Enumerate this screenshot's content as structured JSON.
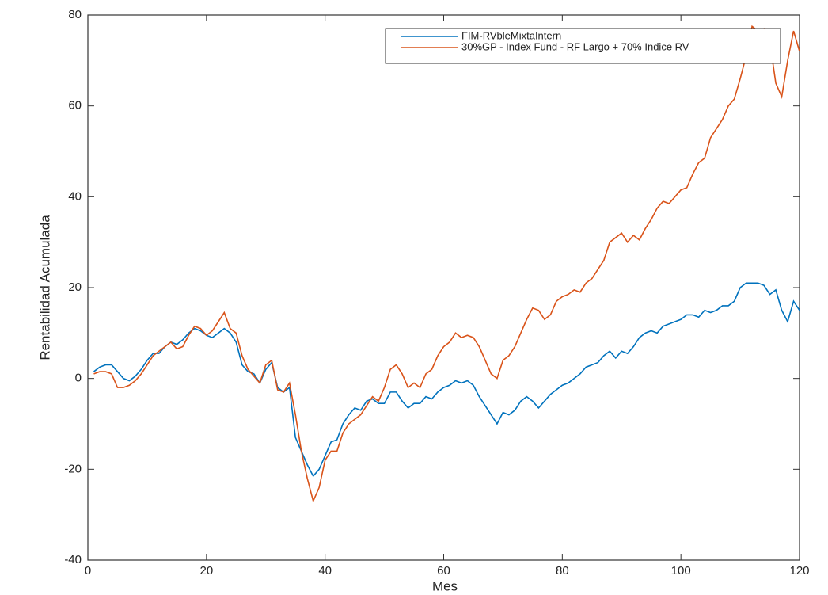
{
  "chart_data": {
    "type": "line",
    "xlabel": "Mes",
    "ylabel": "Rentabilidad Acumulada",
    "x": [
      1,
      2,
      3,
      4,
      5,
      6,
      7,
      8,
      9,
      10,
      11,
      12,
      13,
      14,
      15,
      16,
      17,
      18,
      19,
      20,
      21,
      22,
      23,
      24,
      25,
      26,
      27,
      28,
      29,
      30,
      31,
      32,
      33,
      34,
      35,
      36,
      37,
      38,
      39,
      40,
      41,
      42,
      43,
      44,
      45,
      46,
      47,
      48,
      49,
      50,
      51,
      52,
      53,
      54,
      55,
      56,
      57,
      58,
      59,
      60,
      61,
      62,
      63,
      64,
      65,
      66,
      67,
      68,
      69,
      70,
      71,
      72,
      73,
      74,
      75,
      76,
      77,
      78,
      79,
      80,
      81,
      82,
      83,
      84,
      85,
      86,
      87,
      88,
      89,
      90,
      91,
      92,
      93,
      94,
      95,
      96,
      97,
      98,
      99,
      100,
      101,
      102,
      103,
      104,
      105,
      106,
      107,
      108,
      109,
      110,
      111,
      112,
      113,
      114,
      115,
      116,
      117,
      118,
      119,
      120
    ],
    "series": [
      {
        "name": "FIM-RVbleMixtaIntern",
        "color": "#0072bd",
        "values": [
          1.5,
          2.5,
          3,
          3,
          1.5,
          0,
          -0.5,
          0.5,
          2,
          4,
          5.5,
          5.5,
          7,
          8,
          7.5,
          8.5,
          10,
          11,
          10.5,
          9.5,
          9,
          10,
          11,
          10,
          8,
          3,
          1.5,
          1,
          -1,
          2,
          3.5,
          -2,
          -3,
          -2,
          -13,
          -16,
          -19,
          -21.5,
          -20,
          -17,
          -14,
          -13.5,
          -10,
          -8,
          -6.5,
          -7,
          -5,
          -4.5,
          -5.5,
          -5.5,
          -3,
          -3,
          -5,
          -6.5,
          -5.5,
          -5.5,
          -4,
          -4.5,
          -3,
          -2,
          -1.5,
          -0.5,
          -1,
          -0.5,
          -1.5,
          -4,
          -6,
          -8,
          -10,
          -7.5,
          -8,
          -7,
          -5,
          -4,
          -5,
          -6.5,
          -5,
          -3.5,
          -2.5,
          -1.5,
          -1,
          0,
          1,
          2.5,
          3,
          3.5,
          5,
          6,
          4.5,
          6,
          5.5,
          7,
          9,
          10,
          10.5,
          10,
          11.5,
          12,
          12.5,
          13,
          14,
          14,
          13.5,
          15,
          14.5,
          15,
          16,
          16,
          17,
          20,
          21,
          21,
          21,
          20.5,
          18.5,
          19.5,
          15,
          12.5,
          17,
          15
        ]
      },
      {
        "name": "30%GP - Index Fund - RF Largo + 70% Indice RV",
        "color": "#d95319",
        "values": [
          1,
          1.5,
          1.5,
          1,
          -2,
          -2,
          -1.5,
          -0.5,
          1,
          3,
          5,
          6,
          7,
          8,
          6.5,
          7,
          9.5,
          11.5,
          11,
          9.5,
          10.5,
          12.5,
          14.5,
          11,
          10,
          5,
          2,
          0.5,
          -1,
          3,
          4,
          -2.5,
          -3,
          -1,
          -8,
          -16,
          -22,
          -27,
          -24,
          -18,
          -16,
          -16,
          -12,
          -10,
          -9,
          -8,
          -6,
          -4,
          -5,
          -2,
          2,
          3,
          1,
          -2,
          -1,
          -2,
          1,
          2,
          5,
          7,
          8,
          10,
          9,
          9.5,
          9,
          7,
          4,
          1,
          0,
          4,
          5,
          7,
          10,
          13,
          15.5,
          15,
          13,
          14,
          17,
          18,
          18.5,
          19.5,
          19,
          21,
          22,
          24,
          26,
          30,
          31,
          32,
          30,
          31.5,
          30.5,
          33,
          35,
          37.5,
          39,
          38.5,
          40,
          41.5,
          42,
          45,
          47.5,
          48.5,
          53,
          55,
          57,
          60,
          61.5,
          66,
          71,
          77.5,
          76.5,
          77,
          74,
          65,
          62,
          70,
          76.5,
          72
        ]
      }
    ],
    "xlim": [
      0,
      120
    ],
    "xticks": [
      0,
      20,
      40,
      60,
      80,
      100,
      120
    ],
    "ylim": [
      -40,
      80
    ],
    "yticks": [
      -40,
      -20,
      0,
      20,
      40,
      60,
      80
    ],
    "grid": false,
    "legend": "top-right"
  }
}
